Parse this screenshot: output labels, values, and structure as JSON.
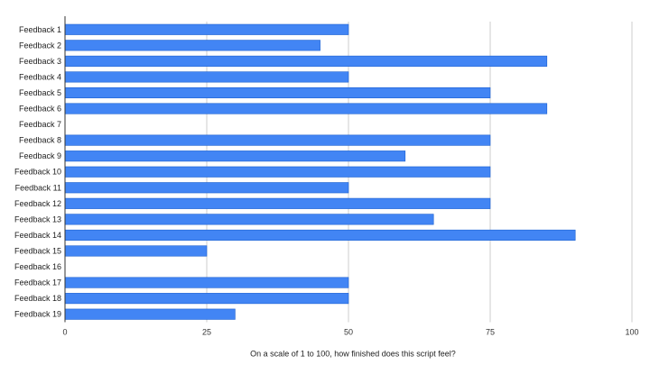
{
  "chart_data": {
    "type": "bar",
    "orientation": "horizontal",
    "title": "",
    "xlabel": "On a scale of 1 to 100, how finished does this script feel?",
    "ylabel": "",
    "xlim": [
      0,
      100
    ],
    "xticks": [
      0,
      25,
      50,
      75,
      100
    ],
    "grid": true,
    "legend": "none",
    "bar_color": "#4285f4",
    "categories": [
      "Feedback 1",
      "Feedback 2",
      "Feedback 3",
      "Feedback 4",
      "Feedback 5",
      "Feedback 6",
      "Feedback 7",
      "Feedback 8",
      "Feedback 9",
      "Feedback 10",
      "Feedback 11",
      "Feedback 12",
      "Feedback 13",
      "Feedback 14",
      "Feedback 15",
      "Feedback 16",
      "Feedback 17",
      "Feedback 18",
      "Feedback 19"
    ],
    "values": [
      50,
      45,
      85,
      50,
      75,
      85,
      null,
      75,
      60,
      75,
      50,
      75,
      65,
      90,
      25,
      null,
      50,
      50,
      30
    ]
  }
}
